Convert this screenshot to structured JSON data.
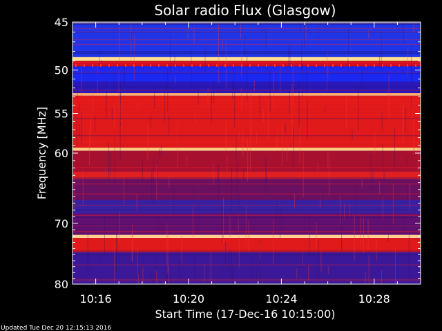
{
  "chart_data": {
    "type": "heatmap",
    "title": "Solar radio Flux (Glasgow)",
    "xlabel": "Start Time (17-Dec-16 10:15:00)",
    "ylabel": "Frequency [MHz]",
    "x_ticks": [
      "10:16",
      "10:20",
      "10:24",
      "10:28"
    ],
    "y_ticks": [
      "45",
      "50",
      "55",
      "60",
      "70",
      "80"
    ],
    "y_tick_values": [
      45,
      50,
      55,
      60,
      70,
      80
    ],
    "x_tick_minutes": [
      1,
      5,
      9,
      13
    ],
    "xlim_minutes": [
      0,
      15
    ],
    "ylim": [
      45,
      80
    ],
    "y_scale": "log",
    "colormap": [
      "#1a0b6b",
      "#2020ff",
      "#6a0a8a",
      "#b01030",
      "#e01818",
      "#ff5020",
      "#ffe080"
    ],
    "bands": [
      {
        "range": [
          44.6,
          45.2
        ],
        "color": "#5a4a9a"
      },
      {
        "range": [
          45.2,
          48.6
        ],
        "color": "#2035e8"
      },
      {
        "range": [
          48.6,
          49.0
        ],
        "color": "#ffe090"
      },
      {
        "range": [
          49.0,
          49.6
        ],
        "color": "#d01020"
      },
      {
        "range": [
          49.6,
          51.3
        ],
        "color": "#1a28f0"
      },
      {
        "range": [
          51.3,
          52.6
        ],
        "color": "#2a18b8"
      },
      {
        "range": [
          52.6,
          52.9
        ],
        "color": "#ffb070"
      },
      {
        "range": [
          52.9,
          59.3
        ],
        "color": "#e01a1a"
      },
      {
        "range": [
          59.3,
          59.7
        ],
        "color": "#ffd080"
      },
      {
        "range": [
          59.7,
          62.5
        ],
        "color": "#a81030"
      },
      {
        "range": [
          62.5,
          63.5
        ],
        "color": "#e02020"
      },
      {
        "range": [
          63.5,
          66.5
        ],
        "color": "#6a1060"
      },
      {
        "range": [
          66.5,
          68.5
        ],
        "color": "#3a20a0"
      },
      {
        "range": [
          68.5,
          71.8
        ],
        "color": "#601070"
      },
      {
        "range": [
          71.8,
          72.3
        ],
        "color": "#ffd090"
      },
      {
        "range": [
          72.3,
          74.6
        ],
        "color": "#e01a1a"
      },
      {
        "range": [
          74.6,
          80.0
        ],
        "color": "#3a1898"
      }
    ]
  },
  "footer": "Updated Tue Dec 20 12:15:13 2016"
}
